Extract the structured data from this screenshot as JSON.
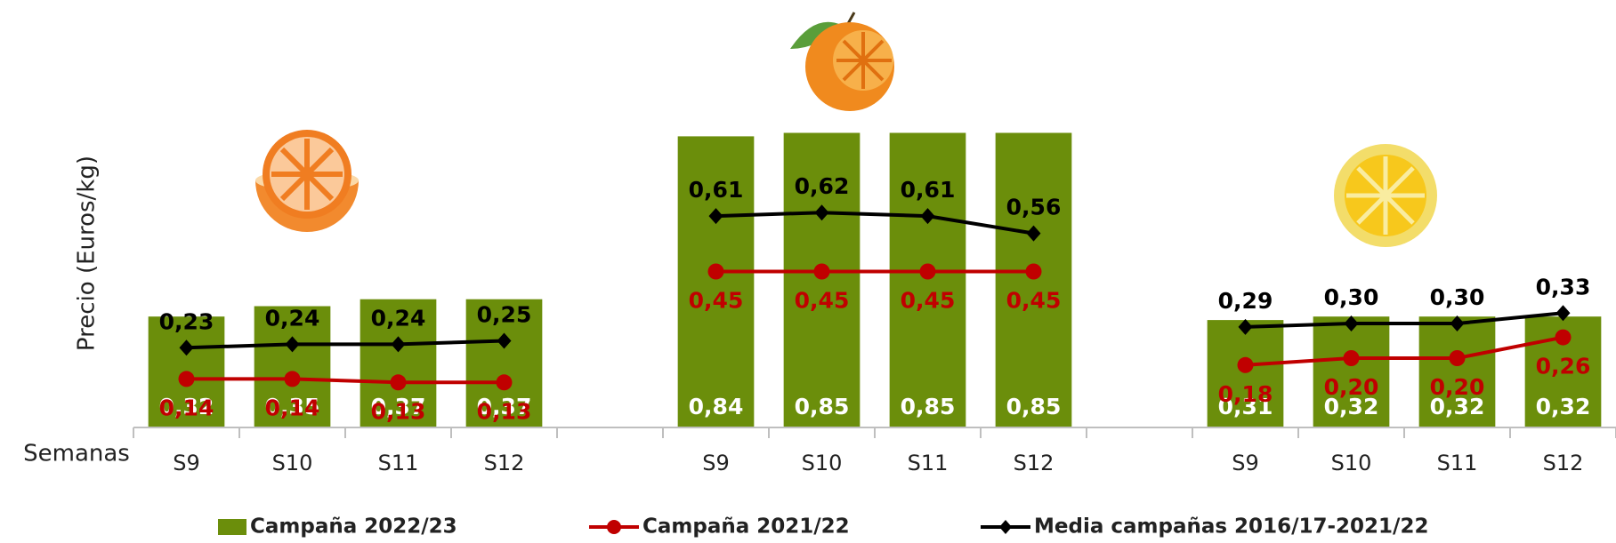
{
  "chart_data": {
    "type": "bar",
    "y_label": "Precio (Euros/kg)",
    "x_label": "Semanas",
    "categories": [
      "S9",
      "S10",
      "S11",
      "S12",
      null,
      "S9",
      "S10",
      "S11",
      "S12",
      null,
      "S9",
      "S10",
      "S11",
      "S12"
    ],
    "ylim": [
      0,
      1.2
    ],
    "series": [
      {
        "name": "Campaña 2022/23",
        "type": "bar",
        "color": "#6b8e0b",
        "values": [
          0.32,
          0.35,
          0.37,
          0.37,
          null,
          0.84,
          0.85,
          0.85,
          0.85,
          null,
          0.31,
          0.32,
          0.32,
          0.32
        ],
        "value_labels": [
          "0,32",
          "0,35",
          "0,37",
          "0,37",
          null,
          "0,84",
          "0,85",
          "0,85",
          "0,85",
          null,
          "0,31",
          "0,32",
          "0,32",
          "0,32"
        ]
      },
      {
        "name": "Campaña 2021/22",
        "type": "line",
        "color": "#c00000",
        "values": [
          0.14,
          0.14,
          0.13,
          0.13,
          null,
          0.45,
          0.45,
          0.45,
          0.45,
          null,
          0.18,
          0.2,
          0.2,
          0.26
        ],
        "value_labels": [
          "0,14",
          "0,14",
          "0,13",
          "0,13",
          null,
          "0,45",
          "0,45",
          "0,45",
          "0,45",
          null,
          "0,18",
          "0,20",
          "0,20",
          "0,26"
        ]
      },
      {
        "name": "Media campañas 2016/17-2021/22",
        "type": "line",
        "color": "#000000",
        "values": [
          0.23,
          0.24,
          0.24,
          0.25,
          null,
          0.61,
          0.62,
          0.61,
          0.56,
          null,
          0.29,
          0.3,
          0.3,
          0.33
        ],
        "value_labels": [
          "0,23",
          "0,24",
          "0,24",
          "0,25",
          null,
          "0,61",
          "0,62",
          "0,61",
          "0,56",
          null,
          "0,29",
          "0,30",
          "0,30",
          "0,33"
        ]
      }
    ]
  }
}
